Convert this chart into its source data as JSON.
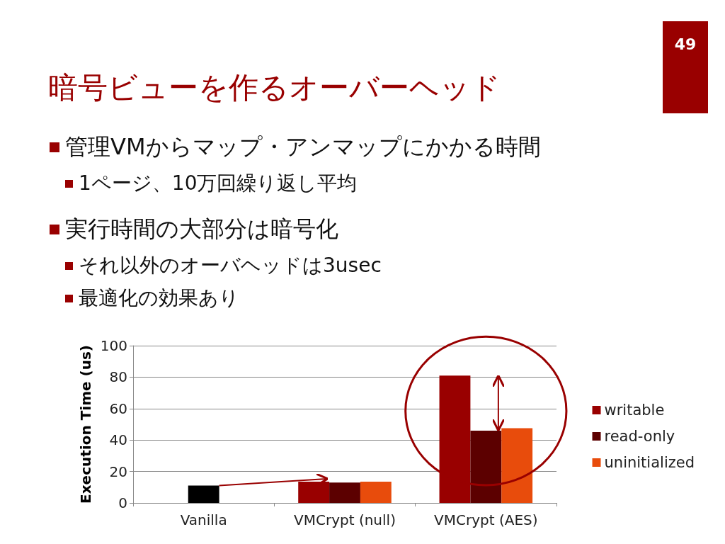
{
  "chart_data": {
    "type": "bar",
    "title": "暗号ビューを作るオーバーヘッド",
    "annotations": [
      "管理VMからマップ・アンマップにかかる時間",
      "1ページ、10万回繰り返し平均",
      "実行時間の大部分は暗号化",
      "それ以外のオーバヘッドは3usec",
      "最適化の効果あり",
      "49"
    ],
    "ylabel": "Execution Time (us)",
    "categories": [
      "Vanilla",
      "VMCrypt (null)",
      "VMCrypt (AES)"
    ],
    "series": [
      {
        "name": "writable",
        "color": "#990000",
        "values": [
          null,
          13.5,
          81
        ]
      },
      {
        "name": "read-only",
        "color": "#5c0000",
        "colors": [
          "#000000",
          "#5c0000",
          "#5c0000"
        ],
        "values": [
          11,
          13,
          46
        ]
      },
      {
        "name": "uninitialized",
        "color": "#e84c0c",
        "values": [
          null,
          13.5,
          47.5
        ]
      }
    ],
    "ylim": [
      0,
      100
    ],
    "yticks": [
      0,
      20,
      40,
      60,
      80,
      100
    ],
    "grid": "y",
    "legend": "right"
  }
}
